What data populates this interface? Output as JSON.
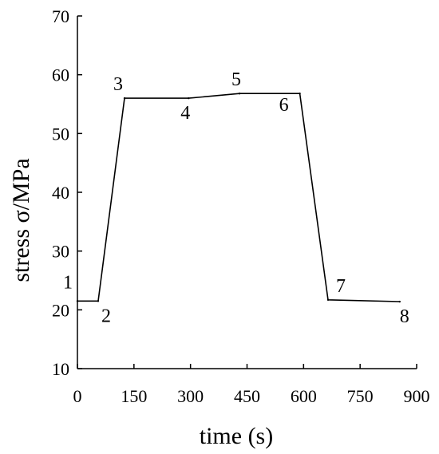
{
  "chart_data": {
    "type": "line",
    "title": "",
    "xlabel": "time (s)",
    "ylabel": "stress σ/MPa",
    "xlim": [
      0,
      900
    ],
    "ylim": [
      10,
      70
    ],
    "xticks": [
      0,
      150,
      300,
      450,
      600,
      750,
      900
    ],
    "yticks": [
      10,
      20,
      30,
      40,
      50,
      60,
      70
    ],
    "grid": false,
    "legend": "none",
    "series": [
      {
        "x": [
          0,
          55,
          125,
          295,
          430,
          590,
          665,
          855
        ],
        "y": [
          21.5,
          21.5,
          56.0,
          56.0,
          56.8,
          56.8,
          21.7,
          21.4
        ],
        "point_labels": [
          "1",
          "2",
          "3",
          "4",
          "5",
          "6",
          "7",
          "8"
        ]
      }
    ],
    "colors": {
      "line": "#000000",
      "axis": "#000000",
      "background": "#ffffff"
    }
  }
}
